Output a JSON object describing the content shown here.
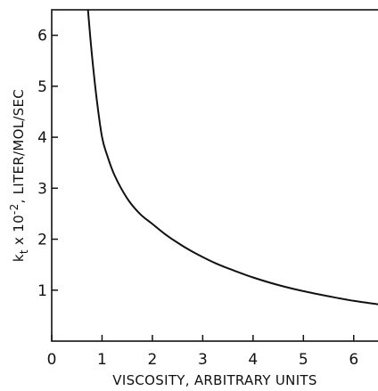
{
  "chart_data": {
    "type": "line",
    "title": "",
    "xlabel": "VISCOSITY, ARBITRARY UNITS",
    "ylabel": {
      "prefix": "k",
      "subscript": "t",
      "middle": " x 10",
      "superscript": "-2",
      "suffix": ", LITER/MOL/SEC"
    },
    "xlim": [
      0,
      6.5
    ],
    "ylim": [
      0,
      6.5
    ],
    "x_ticks": [
      0,
      1,
      2,
      3,
      4,
      5,
      6
    ],
    "y_ticks": [
      1,
      2,
      3,
      4,
      5,
      6
    ],
    "grid": false,
    "legend": "none",
    "color": "#111111",
    "series": [
      {
        "x": [
          0.72,
          0.8,
          0.9,
          1.0,
          1.1,
          1.25,
          1.5,
          1.75,
          2.0,
          2.25,
          2.5,
          2.75,
          3.0,
          3.25,
          3.5,
          4.0,
          4.5,
          5.0,
          5.5,
          6.0,
          6.5
        ],
        "y": [
          6.5,
          5.6,
          4.7,
          4.0,
          3.65,
          3.25,
          2.8,
          2.5,
          2.3,
          2.1,
          1.93,
          1.78,
          1.65,
          1.53,
          1.43,
          1.25,
          1.1,
          0.98,
          0.88,
          0.79,
          0.72
        ]
      }
    ]
  }
}
